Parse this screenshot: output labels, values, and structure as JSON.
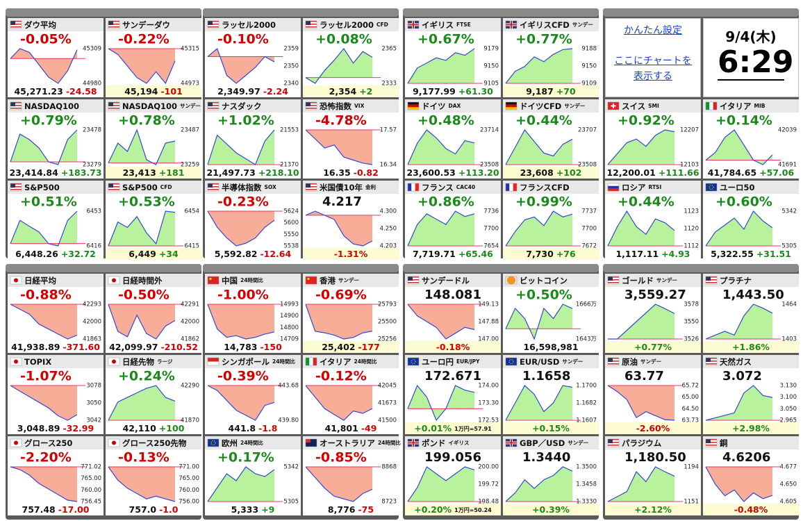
{
  "panel": {
    "settings": "かんたん設定",
    "chart_link": "ここにチャートを表示する",
    "date": "9/4(木)",
    "time": "6:29"
  },
  "tiles": [
    {
      "name": "ダウ平均",
      "big": "-0.05%",
      "small": "45,271.23",
      "diff": "-24.58",
      "axis": [
        "45309",
        "44980"
      ],
      "spark": [
        45200,
        45280,
        45250,
        45150,
        45050,
        45000,
        45100,
        45271
      ]
    },
    {
      "name": "サンデーダウ",
      "big": "-0.22%",
      "small": "45,194",
      "diff": "-101",
      "axis": [
        "45315",
        "44973"
      ],
      "spark": [
        45300,
        45250,
        45150,
        45050,
        45000,
        45100,
        45000,
        45194
      ]
    },
    {
      "name": "NASDAQ100",
      "big": "+0.79%",
      "small": "23,414.84",
      "diff": "+183.73",
      "axis": [
        "23478",
        "23279"
      ],
      "spark": [
        23300,
        23400,
        23380,
        23350,
        23300,
        23290,
        23380,
        23415
      ]
    },
    {
      "name": "NASDAQ100",
      "tag": "サンデー",
      "big": "+0.78%",
      "small": "23,413",
      "diff": "+181",
      "axis": [
        "23487",
        "23259"
      ],
      "spark": [
        23280,
        23400,
        23350,
        23480,
        23300,
        23270,
        23400,
        23413
      ]
    },
    {
      "name": "S&P500",
      "big": "+0.51%",
      "small": "6,448.26",
      "diff": "+32.72",
      "axis": [
        "6453",
        "6416"
      ],
      "spark": [
        6420,
        6440,
        6435,
        6430,
        6420,
        6418,
        6440,
        6448
      ]
    },
    {
      "name": "S&P500",
      "tag": "CFD",
      "big": "+0.53%",
      "small": "6,449",
      "diff": "+34",
      "axis": [
        "6454",
        "6415"
      ],
      "spark": [
        6418,
        6440,
        6435,
        6445,
        6430,
        6420,
        6450,
        6449
      ]
    },
    {
      "name": "ラッセル2000",
      "big": "-0.10%",
      "small": "2,349.97",
      "diff": "-2.24",
      "axis": [
        "2359",
        "2350",
        "2340"
      ],
      "spark": [
        2352,
        2355,
        2345,
        2342,
        2345,
        2348,
        2352,
        2350
      ]
    },
    {
      "name": "ラッセル2000",
      "tag": "CFD",
      "big": "+0.08%",
      "small": "2,354",
      "diff": "+2",
      "axis": [
        "2365",
        "2333"
      ],
      "spark": [
        2340,
        2336,
        2345,
        2352,
        2360,
        2350,
        2358,
        2354
      ]
    },
    {
      "name": "ナスダック",
      "big": "+1.02%",
      "small": "21,497.73",
      "diff": "+218.10",
      "axis": [
        "21553",
        "21370"
      ],
      "spark": [
        21380,
        21480,
        21450,
        21420,
        21400,
        21380,
        21460,
        21498
      ]
    },
    {
      "name": "恐怖指数",
      "tag": "VIX",
      "big": "-4.78%",
      "small": "16.35",
      "diff": "-0.82",
      "axis": [
        "17.57",
        "16.34"
      ],
      "spark": [
        17.5,
        17.2,
        16.9,
        17.0,
        16.6,
        16.5,
        16.4,
        16.35
      ]
    },
    {
      "name": "半導体指数",
      "tag": "SOX",
      "big": "-0.23%",
      "small": "5,592.82",
      "diff": "-12.64",
      "axis": [
        "5624",
        "5600",
        "5550",
        "5538"
      ],
      "spark": [
        5610,
        5580,
        5560,
        5545,
        5550,
        5560,
        5580,
        5593
      ]
    },
    {
      "name": "米国債10年",
      "tag": "金利",
      "big": "4.217",
      "diff": "-1.31%",
      "axis": [
        "4.300",
        "4.250",
        "4.203"
      ],
      "spark": [
        4.28,
        4.29,
        4.28,
        4.27,
        4.23,
        4.21,
        4.205,
        4.217
      ]
    },
    {
      "name": "イギリス",
      "tag": "FTSE",
      "big": "+0.67%",
      "small": "9,177.99",
      "diff": "+61.30",
      "axis": [
        "9179",
        "9150",
        "9105"
      ],
      "spark": [
        9110,
        9140,
        9150,
        9160,
        9155,
        9170,
        9165,
        9178
      ]
    },
    {
      "name": "イギリスCFD",
      "tag": "サンデー",
      "big": "+0.77%",
      "small": "9,187",
      "diff": "+70",
      "axis": [
        "9188",
        "9150",
        "9109"
      ],
      "spark": [
        9115,
        9140,
        9150,
        9170,
        9160,
        9175,
        9185,
        9187
      ]
    },
    {
      "name": "ドイツ",
      "tag": "DAX",
      "big": "+0.48%",
      "small": "23,600.53",
      "diff": "+113.20",
      "axis": [
        "23714",
        "23508"
      ],
      "spark": [
        23520,
        23600,
        23650,
        23620,
        23580,
        23560,
        23610,
        23601
      ]
    },
    {
      "name": "ドイツCFD",
      "tag": "サンデー",
      "big": "+0.44%",
      "small": "23,608",
      "diff": "+102",
      "axis": [
        "23707",
        "23508"
      ],
      "spark": [
        23520,
        23580,
        23640,
        23600,
        23560,
        23550,
        23590,
        23608
      ]
    },
    {
      "name": "フランス",
      "tag": "CAC40",
      "big": "+0.86%",
      "small": "7,719.71",
      "diff": "+65.46",
      "axis": [
        "7736",
        "7700",
        "7654"
      ],
      "spark": [
        7660,
        7700,
        7720,
        7710,
        7700,
        7725,
        7715,
        7720
      ]
    },
    {
      "name": "フランスCFD",
      "big": "+0.99%",
      "small": "7,730",
      "diff": "+76",
      "axis": [
        "7737",
        "7700",
        "7672"
      ],
      "spark": [
        7675,
        7700,
        7720,
        7725,
        7710,
        7735,
        7725,
        7730
      ]
    },
    {
      "name": "スイス",
      "tag": "SMI",
      "big": "+0.92%",
      "small": "12,200.01",
      "diff": "+111.66",
      "axis": [
        "12207",
        "12103"
      ],
      "spark": [
        12110,
        12140,
        12170,
        12180,
        12160,
        12190,
        12205,
        12200
      ]
    },
    {
      "name": "イタリア",
      "tag": "MIB",
      "big": "+0.14%",
      "small": "41,784.65",
      "diff": "+57.06",
      "axis": [
        "42039",
        "41691"
      ],
      "spark": [
        41750,
        41800,
        41900,
        41950,
        41850,
        41750,
        41720,
        41785
      ]
    },
    {
      "name": "ロシア",
      "tag": "RTSI",
      "big": "+0.44%",
      "small": "1,117.11",
      "diff": "+4.93",
      "axis": [
        "1123",
        "1120",
        "1112"
      ],
      "spark": [
        1113,
        1118,
        1122,
        1118,
        1116,
        1120,
        1119,
        1117
      ]
    },
    {
      "name": "ユーロ50",
      "big": "+0.60%",
      "small": "5,322.55",
      "diff": "+31.51",
      "axis": [
        "5342",
        "5305"
      ],
      "spark": [
        5310,
        5320,
        5325,
        5330,
        5322,
        5335,
        5328,
        5323
      ]
    },
    {
      "name": "日経平均",
      "big": "-0.88%",
      "small": "41,938.89",
      "diff": "-371.60",
      "axis": [
        "42293",
        "42000",
        "41863"
      ],
      "spark": [
        42250,
        42200,
        42150,
        42050,
        42000,
        41950,
        41900,
        41939
      ]
    },
    {
      "name": "日経時間外",
      "big": "-0.50%",
      "small": "42,099.97",
      "diff": "-210.52",
      "axis": [
        "42291",
        "42000",
        "41862"
      ],
      "spark": [
        42250,
        42000,
        41950,
        42150,
        41980,
        41930,
        42050,
        42100
      ]
    },
    {
      "name": "TOPIX",
      "big": "-1.07%",
      "small": "3,048.89",
      "diff": "-32.99",
      "axis": [
        "3078",
        "3050",
        "3042"
      ],
      "spark": [
        3075,
        3070,
        3065,
        3060,
        3055,
        3048,
        3044,
        3049
      ]
    },
    {
      "name": "日経先物",
      "tag": "ラージ",
      "big": "+0.24%",
      "small": "42,110",
      "diff": "+100",
      "axis": [
        "42290",
        "41870"
      ],
      "spark": [
        41900,
        42100,
        42150,
        42200,
        42250,
        42280,
        42150,
        42110
      ]
    },
    {
      "name": "グロース250",
      "big": "-2.20%",
      "small": "757.48",
      "diff": "-17.00",
      "axis": [
        "771.02",
        "765.00",
        "760.00",
        "756.45"
      ],
      "spark": [
        770,
        769,
        767,
        764,
        762,
        760,
        758,
        757.5
      ]
    },
    {
      "name": "グロース250先物",
      "big": "-0.13%",
      "small": "757.0",
      "diff": "-1.0",
      "axis": [
        "771.00",
        "765.00",
        "760.00",
        "756.00"
      ],
      "spark": [
        770,
        765,
        762,
        760,
        758,
        759,
        758,
        757
      ]
    },
    {
      "name": "中国",
      "tag": "24時間比",
      "big": "-1.00%",
      "small": "14,783",
      "diff": "-150",
      "axis": [
        "14993",
        "14900",
        "14800",
        "14709"
      ],
      "spark": [
        14950,
        14800,
        14750,
        14760,
        14740,
        14750,
        14770,
        14783
      ]
    },
    {
      "name": "香港",
      "tag": "サンデー",
      "big": "-0.69%",
      "small": "25,402",
      "diff": "-177",
      "axis": [
        "25793",
        "25500",
        "25256"
      ],
      "spark": [
        25750,
        25400,
        25380,
        25350,
        25300,
        25320,
        25380,
        25402
      ]
    },
    {
      "name": "シンガポール",
      "tag": "24時間比",
      "big": "-0.39%",
      "small": "441.8",
      "diff": "-1.8",
      "axis": [
        "443.68",
        "439.80"
      ],
      "spark": [
        443.5,
        443,
        442,
        441,
        440.5,
        440,
        441.5,
        441.8
      ]
    },
    {
      "name": "イタリア",
      "tag": "24時間比",
      "big": "-0.12%",
      "small": "41,801",
      "diff": "-49",
      "axis": [
        "42045",
        "41673",
        "41500"
      ],
      "spark": [
        42000,
        41900,
        41800,
        41750,
        41700,
        41780,
        41760,
        41801
      ]
    },
    {
      "name": "欧州",
      "tag": "24時間比",
      "big": "+0.17%",
      "small": "5,333",
      "diff": "+9",
      "axis": [
        "5342",
        "5305"
      ],
      "spark": [
        5310,
        5320,
        5330,
        5325,
        5335,
        5330,
        5328,
        5333
      ]
    },
    {
      "name": "オーストラリア",
      "tag": "24時間比",
      "big": "-0.85%",
      "small": "8,776",
      "diff": "-75",
      "axis": [
        "8868",
        "8723"
      ],
      "spark": [
        8860,
        8820,
        8780,
        8750,
        8740,
        8730,
        8760,
        8776
      ]
    },
    {
      "name": "サンデードル",
      "big": "148.081",
      "diff": "-0.18%",
      "axis": [
        "149.13",
        "147.88",
        "147.00"
      ],
      "spark": [
        148.3,
        148.2,
        148.15,
        148.1,
        148.0,
        148.05,
        148.1,
        148.081
      ]
    },
    {
      "name": "ビットコイン",
      "big": "+0.50%",
      "small": "16,598,981",
      "axis": [
        "1666万",
        "1643万"
      ],
      "spark": [
        16500000,
        16600000,
        16550000,
        16450000,
        16600000,
        16550000,
        16620000,
        16598981
      ]
    },
    {
      "name": "ユーロ円",
      "tag": "EUR/JPY",
      "big": "172.671",
      "diff": "+0.01%",
      "note": "1万円=57.91",
      "axis": [
        "174.00",
        "173.30",
        "172.53"
      ],
      "spark": [
        172.6,
        172.7,
        172.65,
        172.55,
        172.6,
        172.7,
        172.68,
        172.671
      ]
    },
    {
      "name": "EUR/USD",
      "tag": "サンデー",
      "big": "1.1658",
      "diff": "+0.15%",
      "axis": [
        "1.1700",
        "1.1682",
        "1.1607"
      ],
      "spark": [
        1.162,
        1.164,
        1.166,
        1.165,
        1.163,
        1.164,
        1.166,
        1.1658
      ]
    },
    {
      "name": "ポンド",
      "tag": "イギリス",
      "big": "199.056",
      "diff": "+0.20%",
      "note": "1万円=50.24",
      "axis": [
        "200.00",
        "199.72",
        "198.48"
      ],
      "spark": [
        198.6,
        198.8,
        199.1,
        199.0,
        198.9,
        199.0,
        199.1,
        199.056
      ]
    },
    {
      "name": "GBP／USD",
      "tag": "サンデー",
      "big": "1.3440",
      "diff": "+0.39%",
      "axis": [
        "1.3500",
        "1.3458",
        "1.3330"
      ],
      "spark": [
        1.337,
        1.339,
        1.342,
        1.34,
        1.342,
        1.343,
        1.345,
        1.344
      ]
    },
    {
      "name": "ゴールド",
      "tag": "サンデー",
      "big": "3,559.27",
      "diff": "+0.77%",
      "axis": [
        "3578",
        "3550",
        "3526"
      ],
      "spark": [
        3530,
        3530,
        3540,
        3550,
        3560,
        3570,
        3565,
        3559.27
      ]
    },
    {
      "name": "プラチナ",
      "big": "1,443.50",
      "diff": "+1.86%",
      "axis": [
        "1464",
        "1403"
      ],
      "spark": [
        1410,
        1415,
        1420,
        1415,
        1440,
        1455,
        1450,
        1443.5
      ]
    },
    {
      "name": "原油",
      "tag": "サンデー",
      "big": "63.77",
      "diff": "-2.60%",
      "axis": [
        "65.72",
        "65.00",
        "64.50",
        "63.73"
      ],
      "spark": [
        65.5,
        65.2,
        64.8,
        63.9,
        64.2,
        64.0,
        63.8,
        63.77
      ]
    },
    {
      "name": "天然ガス",
      "big": "3.072",
      "diff": "+2.98%",
      "axis": [
        "3.130",
        "3.100",
        "3.050",
        "2.965"
      ],
      "spark": [
        2.98,
        2.99,
        3.0,
        3.01,
        3.09,
        3.12,
        3.08,
        3.072
      ]
    },
    {
      "name": "パラジウム",
      "big": "1,180.50",
      "diff": "+2.12%",
      "axis": [
        "1194",
        "1151"
      ],
      "spark": [
        1155,
        1160,
        1165,
        1185,
        1175,
        1190,
        1185,
        1180.5
      ]
    },
    {
      "name": "銅",
      "big": "4.6206",
      "diff": "-0.48%",
      "axis": [
        "4.677",
        "4.650",
        "4.605"
      ],
      "spark": [
        4.67,
        4.64,
        4.62,
        4.63,
        4.61,
        4.625,
        4.615,
        4.6206
      ]
    }
  ]
}
